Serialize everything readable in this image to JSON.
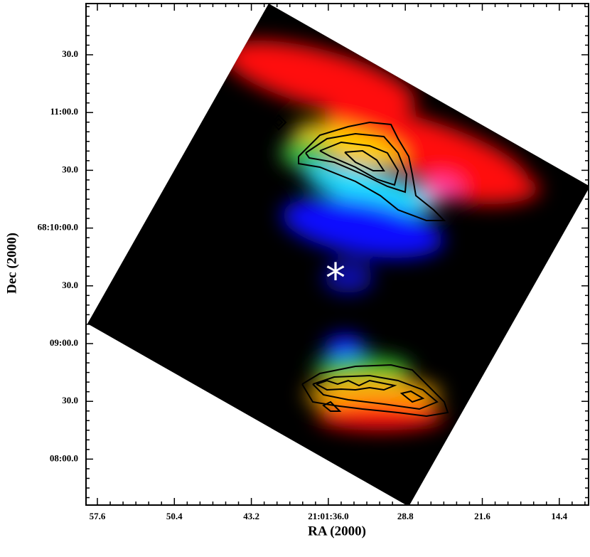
{
  "x_axis": {
    "label": "RA (2000)",
    "ticks": [
      "57.6",
      "50.4",
      "43.2",
      "21:01:36.0",
      "28.8",
      "21.6",
      "14.4"
    ]
  },
  "y_axis": {
    "label": "Dec (2000)",
    "ticks": [
      "30.0",
      "11:00.0",
      "30.0",
      "68:10:00.0",
      "30.0",
      "09:00.0",
      "30.0",
      "08:00.0"
    ]
  },
  "marker": "*"
}
